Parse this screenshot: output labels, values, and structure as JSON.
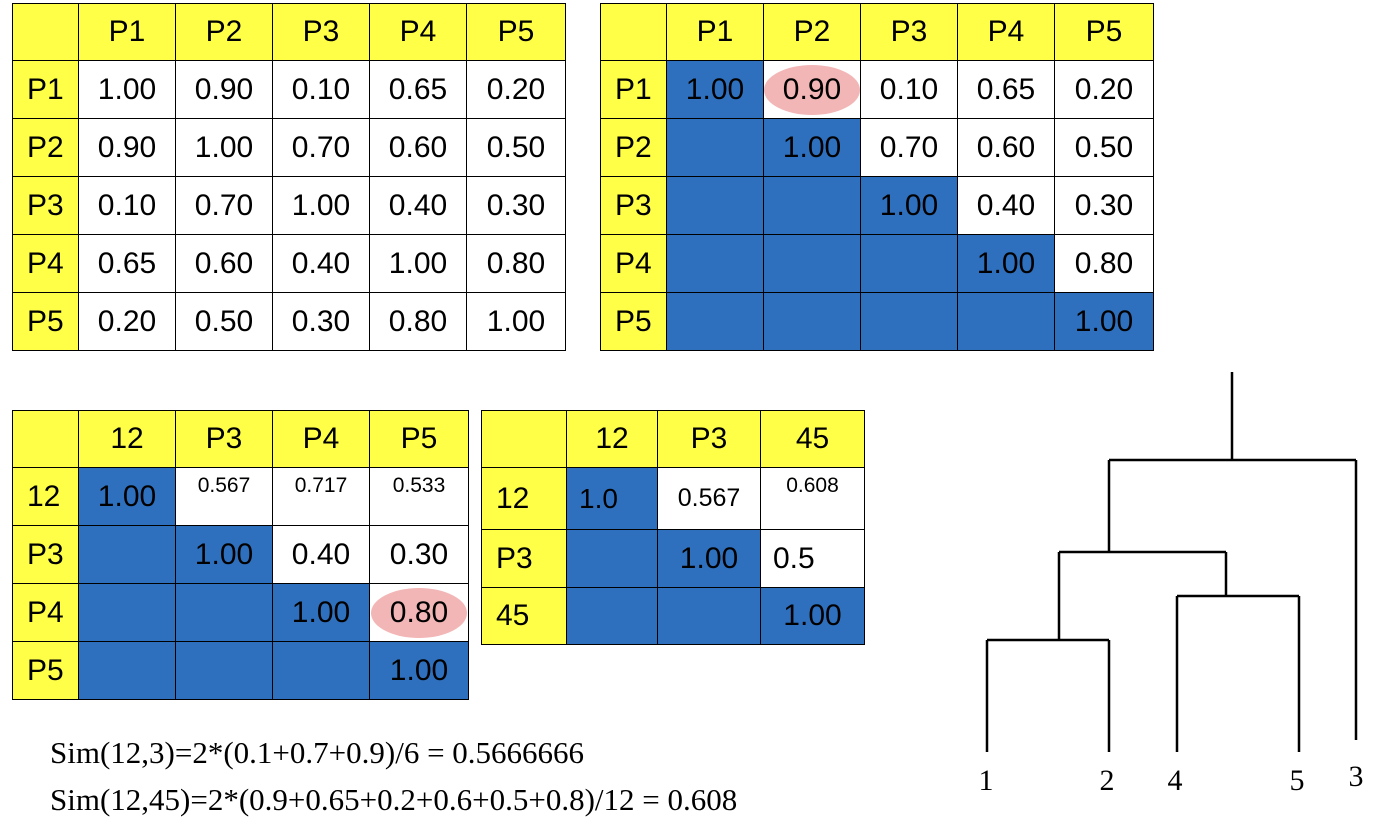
{
  "tables": {
    "t1": {
      "headers": [
        "",
        "P1",
        "P2",
        "P3",
        "P4",
        "P5"
      ],
      "rows": [
        {
          "label": "P1",
          "cells": [
            "1.00",
            "0.90",
            "0.10",
            "0.65",
            "0.20"
          ]
        },
        {
          "label": "P2",
          "cells": [
            "0.90",
            "1.00",
            "0.70",
            "0.60",
            "0.50"
          ]
        },
        {
          "label": "P3",
          "cells": [
            "0.10",
            "0.70",
            "1.00",
            "0.40",
            "0.30"
          ]
        },
        {
          "label": "P4",
          "cells": [
            "0.65",
            "0.60",
            "0.40",
            "1.00",
            "0.80"
          ]
        },
        {
          "label": "P5",
          "cells": [
            "0.20",
            "0.50",
            "0.30",
            "0.80",
            "1.00"
          ]
        }
      ]
    },
    "t2": {
      "headers": [
        "",
        "P1",
        "P2",
        "P3",
        "P4",
        "P5"
      ],
      "rows": [
        {
          "label": "P1",
          "cells": [
            "1.00",
            "0.90",
            "0.10",
            "0.65",
            "0.20"
          ]
        },
        {
          "label": "P2",
          "cells": [
            "",
            "1.00",
            "0.70",
            "0.60",
            "0.50"
          ]
        },
        {
          "label": "P3",
          "cells": [
            "",
            "",
            "1.00",
            "0.40",
            "0.30"
          ]
        },
        {
          "label": "P4",
          "cells": [
            "",
            "",
            "",
            "1.00",
            "0.80"
          ]
        },
        {
          "label": "P5",
          "cells": [
            "",
            "",
            "",
            "",
            "1.00"
          ]
        }
      ],
      "highlighted": "0.90"
    },
    "t3": {
      "headers": [
        "",
        "12",
        "P3",
        "P4",
        "P5"
      ],
      "rows": [
        {
          "label": "12",
          "cells": [
            "1.00",
            "0.567",
            "0.717",
            "0.533"
          ]
        },
        {
          "label": "P3",
          "cells": [
            "",
            "1.00",
            "0.40",
            "0.30"
          ]
        },
        {
          "label": "P4",
          "cells": [
            "",
            "",
            "1.00",
            "0.80"
          ]
        },
        {
          "label": "P5",
          "cells": [
            "",
            "",
            "",
            "1.00"
          ]
        }
      ],
      "highlighted": "0.80"
    },
    "t4": {
      "headers": [
        "",
        "12",
        "P3",
        "45"
      ],
      "rows": [
        {
          "label": "12",
          "cells": [
            "1.0",
            "0.567",
            "0.608"
          ]
        },
        {
          "label": "P3",
          "cells": [
            "",
            "1.00",
            "0.5"
          ]
        },
        {
          "label": "45",
          "cells": [
            "",
            "",
            "1.00"
          ]
        }
      ]
    }
  },
  "formulas": {
    "f1": "Sim(12,3)=2*(0.1+0.7+0.9)/6 = 0.5666666",
    "f2": "Sim(12,45)=2*(0.9+0.65+0.2+0.6+0.5+0.8)/12 = 0.608"
  },
  "dendrogram": {
    "leaves": [
      "1",
      "2",
      "4",
      "5",
      "3"
    ]
  },
  "colors": {
    "header": "#ffff47",
    "upper_triangle_fill": "#2f70be",
    "highlight": "#f3b6b6"
  }
}
